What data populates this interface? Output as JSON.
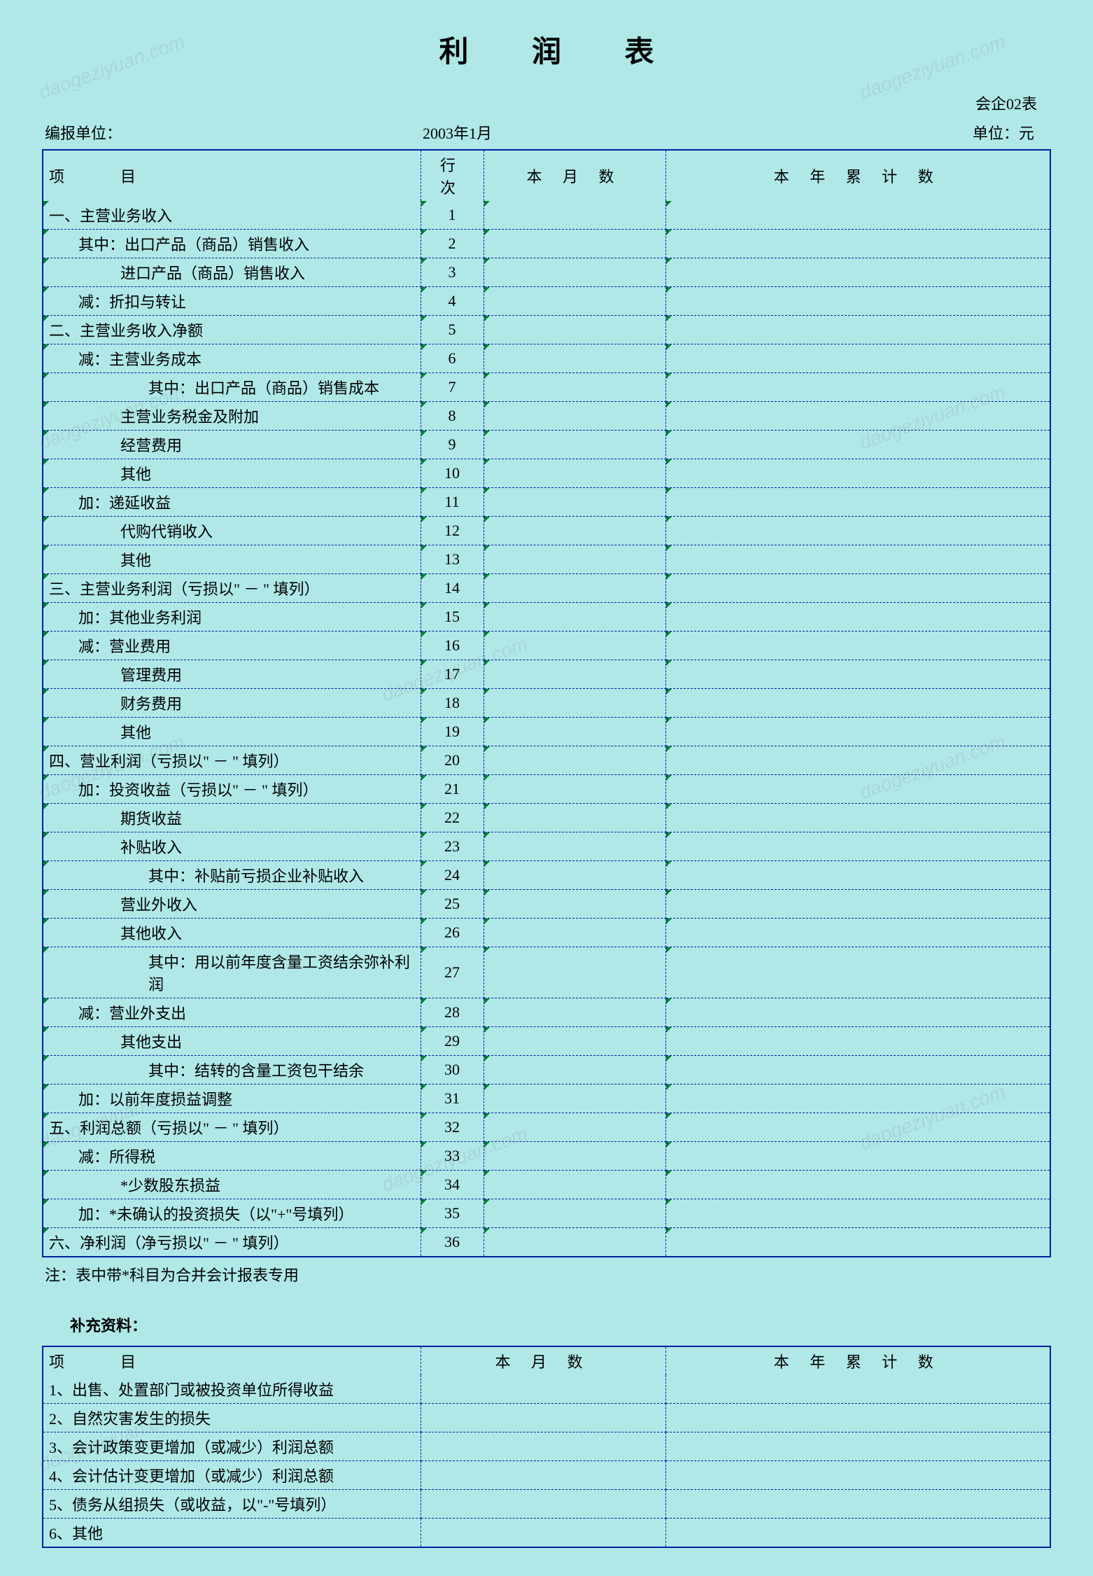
{
  "title": "利 润 表",
  "form_code": "会企02表",
  "org_label": "编报单位：",
  "period": "2003年1月",
  "unit_label": "单位：元",
  "columns": {
    "item": "项　　目",
    "line": "行 次",
    "month": "本 月 数",
    "year": "本 年 累 计 数"
  },
  "rows": [
    {
      "label": "一、主营业务收入",
      "line": "1",
      "indent": 0
    },
    {
      "label": "其中：出口产品（商品）销售收入",
      "line": "2",
      "indent": 1
    },
    {
      "label": "进口产品（商品）销售收入",
      "line": "3",
      "indent": 2
    },
    {
      "label": "减：折扣与转让",
      "line": "4",
      "indent": 1
    },
    {
      "label": "二、主营业务收入净额",
      "line": "5",
      "indent": 0
    },
    {
      "label": "减：主营业务成本",
      "line": "6",
      "indent": 1
    },
    {
      "label": "其中：出口产品（商品）销售成本",
      "line": "7",
      "indent": 3
    },
    {
      "label": "主营业务税金及附加",
      "line": "8",
      "indent": 2
    },
    {
      "label": "经营费用",
      "line": "9",
      "indent": 2
    },
    {
      "label": "其他",
      "line": "10",
      "indent": 2
    },
    {
      "label": "加：递延收益",
      "line": "11",
      "indent": 1
    },
    {
      "label": "代购代销收入",
      "line": "12",
      "indent": 2
    },
    {
      "label": "其他",
      "line": "13",
      "indent": 2
    },
    {
      "label": "三、主营业务利润（亏损以\" － \" 填列）",
      "line": "14",
      "indent": 0
    },
    {
      "label": "加：其他业务利润",
      "line": "15",
      "indent": 1
    },
    {
      "label": "减：营业费用",
      "line": "16",
      "indent": 1
    },
    {
      "label": "管理费用",
      "line": "17",
      "indent": 2
    },
    {
      "label": "财务费用",
      "line": "18",
      "indent": 2
    },
    {
      "label": "其他",
      "line": "19",
      "indent": 2
    },
    {
      "label": "四、营业利润（亏损以\" － \" 填列）",
      "line": "20",
      "indent": 0
    },
    {
      "label": "加：投资收益（亏损以\" － \" 填列）",
      "line": "21",
      "indent": 1
    },
    {
      "label": "期货收益",
      "line": "22",
      "indent": 2
    },
    {
      "label": "补贴收入",
      "line": "23",
      "indent": 2
    },
    {
      "label": "其中：补贴前亏损企业补贴收入",
      "line": "24",
      "indent": 3
    },
    {
      "label": "营业外收入",
      "line": "25",
      "indent": 2
    },
    {
      "label": "其他收入",
      "line": "26",
      "indent": 2
    },
    {
      "label": "其中：用以前年度含量工资结余弥补利润",
      "line": "27",
      "indent": 3
    },
    {
      "label": "减：营业外支出",
      "line": "28",
      "indent": 1
    },
    {
      "label": "其他支出",
      "line": "29",
      "indent": 2
    },
    {
      "label": "其中：结转的含量工资包干结余",
      "line": "30",
      "indent": 3
    },
    {
      "label": "加：以前年度损益调整",
      "line": "31",
      "indent": 1
    },
    {
      "label": "五、利润总额（亏损以\" － \" 填列）",
      "line": "32",
      "indent": 0
    },
    {
      "label": "减：所得税",
      "line": "33",
      "indent": 1
    },
    {
      "label": "*少数股东损益",
      "line": "34",
      "indent": 2
    },
    {
      "label": "加：*未确认的投资损失（以\"+\"号填列）",
      "line": "35",
      "indent": 1
    },
    {
      "label": "六、净利润（净亏损以\" － \" 填列）",
      "line": "36",
      "indent": 0
    }
  ],
  "note": "注：表中带*科目为合并会计报表专用",
  "supp_title": "补充资料：",
  "supp_columns": {
    "item": "项　　目",
    "month": "本 月 数",
    "year": "本 年 累 计 数"
  },
  "supp_rows": [
    {
      "label": "1、出售、处置部门或被投资单位所得收益"
    },
    {
      "label": "2、自然灾害发生的损失"
    },
    {
      "label": "3、会计政策变更增加（或减少）利润总额"
    },
    {
      "label": "4、会计估计变更增加（或减少）利润总额"
    },
    {
      "label": "5、债务从组损失（或收益，以\"-\"号填列）"
    },
    {
      "label": "6、其他"
    }
  ],
  "watermark": "daogeziyuan.com",
  "colors": {
    "background": "#b0e8e8",
    "border": "#0020a0",
    "marker": "#008030"
  }
}
